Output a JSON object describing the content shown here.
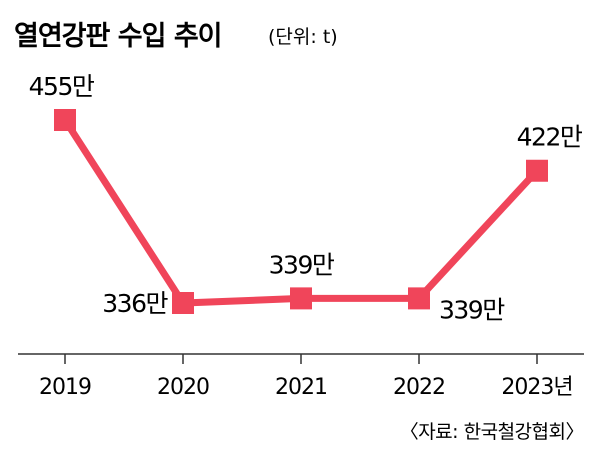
{
  "chart_data": {
    "type": "line",
    "title": "열연강판 수입 추이",
    "unit_label": "(단위: t)",
    "categories": [
      "2019",
      "2020",
      "2021",
      "2022",
      "2023년"
    ],
    "series": [
      {
        "values": [
          455,
          336,
          339,
          339,
          422
        ]
      }
    ],
    "value_labels": [
      "455만",
      "336만",
      "339만",
      "339만",
      "422만"
    ],
    "source": "〈자료: 한국철강협회〉",
    "grid": false,
    "line_color": "#f0455a",
    "axis_color": "#333333"
  }
}
